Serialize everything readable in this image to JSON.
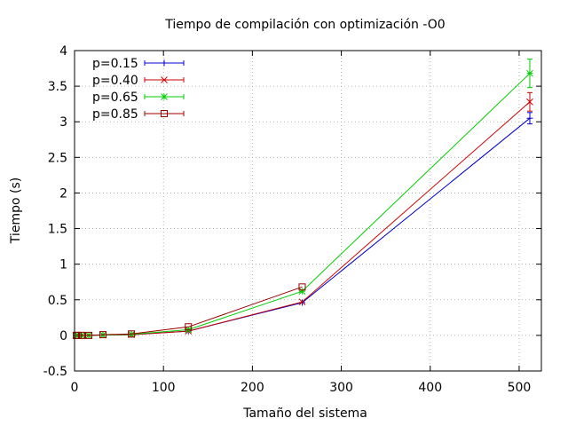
{
  "chart_data": {
    "type": "line",
    "title": "Tiempo de compilación con optimización -O0",
    "xlabel": "Tamaño del sistema",
    "ylabel": "Tiempo (s)",
    "xlim": [
      0,
      525
    ],
    "ylim": [
      -0.5,
      4
    ],
    "xticks": [
      0,
      100,
      200,
      300,
      400,
      500
    ],
    "yticks": [
      -0.5,
      0,
      0.5,
      1,
      1.5,
      2,
      2.5,
      3,
      3.5,
      4
    ],
    "grid": true,
    "legend_position": "top-left",
    "x": [
      2,
      4,
      8,
      16,
      32,
      64,
      128,
      256,
      512
    ],
    "series": [
      {
        "name": "p=0.15",
        "marker": "plus",
        "color": "#0000cc",
        "values": [
          0.0,
          0.0,
          0.0,
          0.0,
          0.005,
          0.01,
          0.06,
          0.46,
          3.05
        ],
        "errors": [
          0,
          0,
          0,
          0,
          0,
          0,
          0,
          0,
          0.08
        ]
      },
      {
        "name": "p=0.40",
        "marker": "cross",
        "color": "#cc0000",
        "values": [
          0.0,
          0.0,
          0.0,
          0.0,
          0.005,
          0.01,
          0.06,
          0.47,
          3.28
        ],
        "errors": [
          0,
          0,
          0,
          0,
          0,
          0,
          0,
          0,
          0.13
        ]
      },
      {
        "name": "p=0.65",
        "marker": "star",
        "color": "#00cc00",
        "values": [
          0.0,
          0.0,
          0.0,
          0.0,
          0.005,
          0.015,
          0.08,
          0.62,
          3.68
        ],
        "errors": [
          0,
          0,
          0,
          0,
          0,
          0,
          0,
          0,
          0.2
        ]
      },
      {
        "name": "p=0.85",
        "marker": "square",
        "color": "#990000",
        "values": [
          0.0,
          0.0,
          0.0,
          0.0,
          0.01,
          0.02,
          0.12,
          0.68,
          null
        ],
        "errors": [
          0,
          0,
          0,
          0,
          0,
          0,
          0,
          0,
          0
        ]
      }
    ]
  }
}
